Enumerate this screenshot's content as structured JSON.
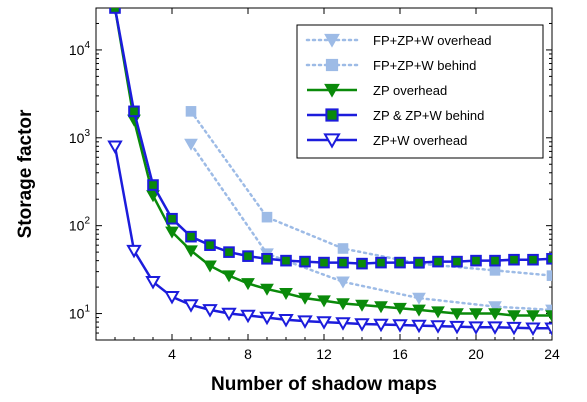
{
  "chart_data": {
    "type": "line",
    "xlabel": "Number of shadow maps",
    "ylabel": "Storage factor",
    "xlim": [
      0,
      24
    ],
    "ylim": [
      5,
      30000
    ],
    "yscale": "log",
    "x_ticks": [
      {
        "value": 4,
        "label": "4"
      },
      {
        "value": 8,
        "label": "8"
      },
      {
        "value": 12,
        "label": "12"
      },
      {
        "value": 16,
        "label": "16"
      },
      {
        "value": 20,
        "label": "20"
      },
      {
        "value": 24,
        "label": "24"
      }
    ],
    "y_ticks": [
      {
        "value": 10,
        "base": "10",
        "exp": "1"
      },
      {
        "value": 100,
        "base": "10",
        "exp": "2"
      },
      {
        "value": 1000,
        "base": "10",
        "exp": "3"
      },
      {
        "value": 10000,
        "base": "10",
        "exp": "4"
      }
    ],
    "grid": false,
    "legend_position": "top-right",
    "series": [
      {
        "name": "FP+ZP+W overhead",
        "color": "#9dbbe6",
        "line": "dotted",
        "marker": "triangle-down-filled",
        "points": [
          [
            5,
            850
          ],
          [
            9,
            48
          ],
          [
            13,
            23
          ],
          [
            17,
            15
          ],
          [
            21,
            12
          ],
          [
            24,
            11
          ]
        ]
      },
      {
        "name": "FP+ZP+W behind",
        "color": "#9dbbe6",
        "line": "dotted",
        "marker": "square-filled",
        "points": [
          [
            5,
            2000
          ],
          [
            9,
            125
          ],
          [
            13,
            55
          ],
          [
            17,
            37
          ],
          [
            21,
            31
          ],
          [
            24,
            27
          ]
        ]
      },
      {
        "name": "ZP overhead",
        "color": "#0a8a0a",
        "line": "solid",
        "marker": "triangle-down-filled",
        "points": [
          [
            1,
            30000
          ],
          [
            2,
            1600
          ],
          [
            3,
            220
          ],
          [
            4,
            85
          ],
          [
            5,
            52
          ],
          [
            6,
            35
          ],
          [
            7,
            27
          ],
          [
            8,
            22
          ],
          [
            9,
            19
          ],
          [
            10,
            17
          ],
          [
            11,
            15
          ],
          [
            12,
            14
          ],
          [
            13,
            13
          ],
          [
            14,
            12.5
          ],
          [
            15,
            12
          ],
          [
            16,
            11.5
          ],
          [
            17,
            11
          ],
          [
            18,
            10.5
          ],
          [
            19,
            10
          ],
          [
            20,
            10
          ],
          [
            21,
            10
          ],
          [
            22,
            9.5
          ],
          [
            23,
            9.5
          ],
          [
            24,
            9.5
          ]
        ]
      },
      {
        "name": "ZP & ZP+W behind",
        "color": "#1c1cdc",
        "fill": "#0a8a0a",
        "line": "solid",
        "marker": "square-filled",
        "points": [
          [
            1,
            30000
          ],
          [
            2,
            2000
          ],
          [
            3,
            290
          ],
          [
            4,
            120
          ],
          [
            5,
            75
          ],
          [
            6,
            60
          ],
          [
            7,
            50
          ],
          [
            8,
            45
          ],
          [
            9,
            42
          ],
          [
            10,
            40
          ],
          [
            11,
            39
          ],
          [
            12,
            38
          ],
          [
            13,
            38
          ],
          [
            14,
            37
          ],
          [
            15,
            38
          ],
          [
            16,
            38
          ],
          [
            17,
            38
          ],
          [
            18,
            39
          ],
          [
            19,
            39
          ],
          [
            20,
            40
          ],
          [
            21,
            40
          ],
          [
            22,
            41
          ],
          [
            23,
            41
          ],
          [
            24,
            42
          ]
        ]
      },
      {
        "name": "ZP+W overhead",
        "color": "#1c1cdc",
        "fill": "#ffffff",
        "line": "solid",
        "marker": "triangle-down-open",
        "points": [
          [
            1,
            800
          ],
          [
            2,
            52
          ],
          [
            3,
            23
          ],
          [
            4,
            15.5
          ],
          [
            5,
            12.5
          ],
          [
            6,
            11
          ],
          [
            7,
            10
          ],
          [
            8,
            9.5
          ],
          [
            9,
            9
          ],
          [
            10,
            8.5
          ],
          [
            11,
            8.2
          ],
          [
            12,
            8
          ],
          [
            13,
            7.8
          ],
          [
            14,
            7.6
          ],
          [
            15,
            7.5
          ],
          [
            16,
            7.4
          ],
          [
            17,
            7.3
          ],
          [
            18,
            7.2
          ],
          [
            19,
            7.1
          ],
          [
            20,
            7
          ],
          [
            21,
            7
          ],
          [
            22,
            6.9
          ],
          [
            23,
            6.8
          ],
          [
            24,
            6.8
          ]
        ]
      }
    ]
  }
}
